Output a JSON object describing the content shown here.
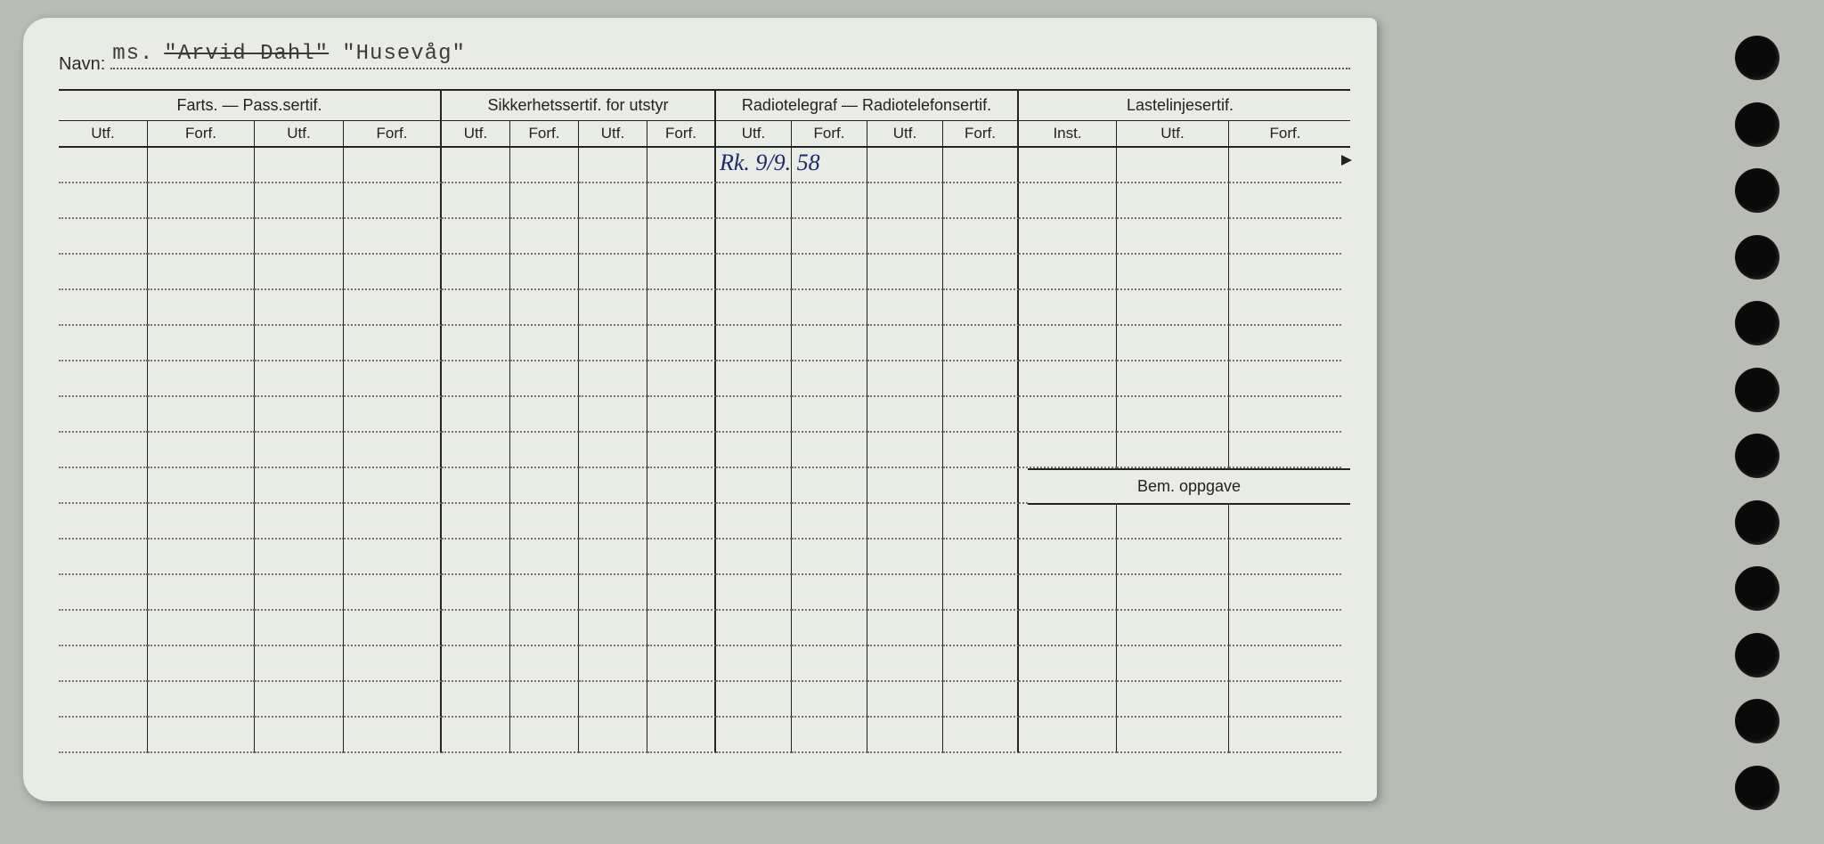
{
  "page": {
    "background_color": "#b8bcb4",
    "card_color": "#e9ece4",
    "line_color": "#222222",
    "dotted_color": "#777777",
    "ink_color": "#1a2a6b"
  },
  "header": {
    "navn_label": "Navn:",
    "typed_prefix": "ms.",
    "typed_struck": "\"Arvid Dahl\"",
    "typed_name": "\"Husevåg\""
  },
  "sections": {
    "farts": "Farts. — Pass.sertif.",
    "sikkerhet": "Sikkerhetssertif. for utstyr",
    "radio": "Radiotelegraf — Radiotelefonsertif.",
    "last": "Lastelinjesertif."
  },
  "subheaders": {
    "utf": "Utf.",
    "forf": "Forf.",
    "inst": "Inst."
  },
  "bem_label": "Bem. oppgave",
  "entries": {
    "row0_col9": "Rk. 9/9. 58"
  },
  "layout": {
    "num_body_rows": 17,
    "bem_after_row": 9,
    "hole_count": 12
  }
}
